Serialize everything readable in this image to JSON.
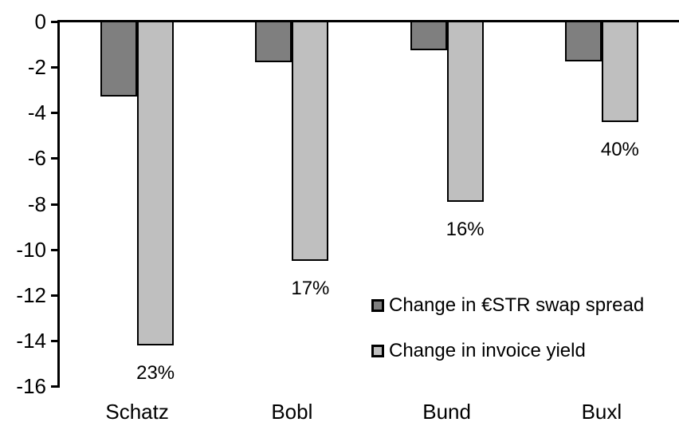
{
  "chart_data": {
    "type": "bar",
    "categories": [
      "Schatz",
      "Bobl",
      "Bund",
      "Buxl"
    ],
    "series": [
      {
        "name": "Change in €STR swap spread",
        "color": "#7f7f7f",
        "values": [
          -3.3,
          -1.8,
          -1.25,
          -1.75
        ]
      },
      {
        "name": "Change in invoice yield",
        "color": "#bfbfbf",
        "values": [
          -14.2,
          -10.5,
          -7.9,
          -4.4
        ]
      }
    ],
    "bar_labels": {
      "series_index": 1,
      "values": [
        "23%",
        "17%",
        "16%",
        "40%"
      ]
    },
    "ylim": [
      -16,
      0
    ],
    "yticks": [
      0,
      -2,
      -4,
      -6,
      -8,
      -10,
      -12,
      -14,
      -16
    ],
    "grid": false,
    "legend_position": "inside-center-right",
    "bar_outline_color": "#000000",
    "axis_color": "#000000",
    "background_color": "#ffffff",
    "text_color": "#000000"
  }
}
